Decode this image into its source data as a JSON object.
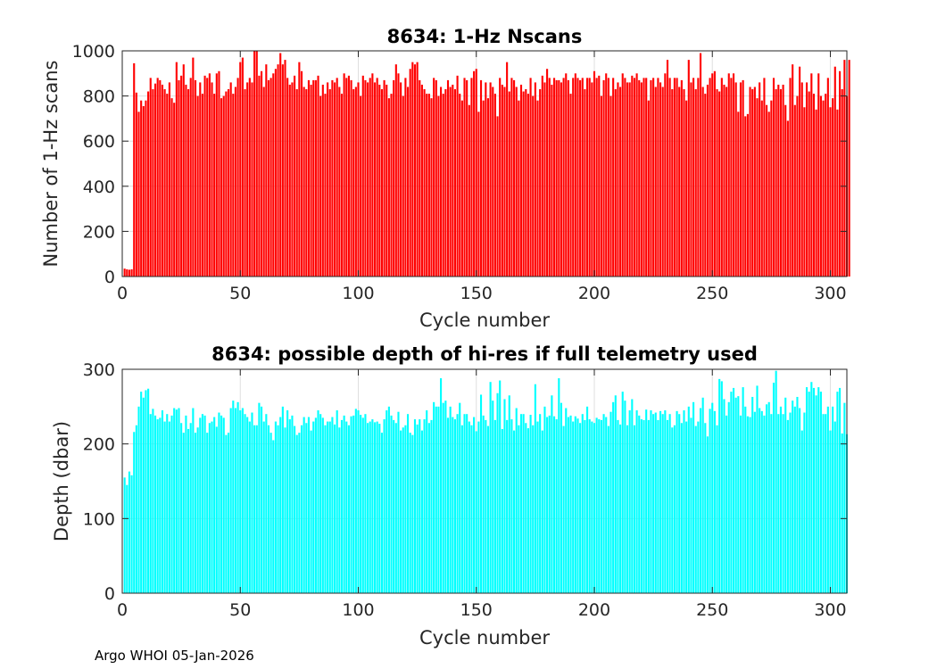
{
  "footer": "Argo WHOI 05-Jan-2026",
  "chart_data": [
    {
      "type": "bar",
      "title": "8634: 1-Hz Nscans",
      "xlabel": "Cycle number",
      "ylabel": "Number of 1-Hz scans",
      "xlim": [
        0,
        307
      ],
      "ylim": [
        0,
        1000
      ],
      "xticks": [
        0,
        50,
        100,
        150,
        200,
        250,
        300
      ],
      "yticks": [
        0,
        200,
        400,
        600,
        800,
        1000
      ],
      "grid": true,
      "color": "#ff0000",
      "x_start": 1,
      "values": [
        35,
        32,
        30,
        32,
        945,
        815,
        730,
        780,
        755,
        780,
        820,
        880,
        830,
        855,
        880,
        870,
        850,
        830,
        810,
        860,
        790,
        770,
        950,
        870,
        890,
        940,
        850,
        830,
        880,
        970,
        870,
        800,
        860,
        810,
        890,
        880,
        900,
        860,
        810,
        900,
        910,
        790,
        800,
        820,
        830,
        860,
        810,
        840,
        880,
        950,
        970,
        830,
        860,
        880,
        860,
        1000,
        1000,
        890,
        910,
        840,
        940,
        870,
        880,
        900,
        920,
        940,
        990,
        940,
        960,
        880,
        850,
        860,
        890,
        830,
        950,
        910,
        840,
        830,
        870,
        850,
        870,
        870,
        890,
        800,
        850,
        810,
        860,
        830,
        870,
        860,
        880,
        840,
        810,
        900,
        880,
        890,
        870,
        830,
        840,
        860,
        800,
        890,
        870,
        860,
        880,
        900,
        860,
        880,
        850,
        830,
        870,
        850,
        790,
        810,
        870,
        940,
        900,
        860,
        800,
        880,
        840,
        920,
        950,
        940,
        950,
        870,
        850,
        830,
        810,
        810,
        790,
        880,
        870,
        800,
        840,
        810,
        830,
        870,
        840,
        850,
        830,
        890,
        810,
        780,
        880,
        870,
        760,
        880,
        910,
        920,
        730,
        870,
        780,
        860,
        790,
        860,
        840,
        810,
        710,
        880,
        850,
        840,
        950,
        820,
        880,
        870,
        840,
        780,
        850,
        820,
        830,
        810,
        880,
        800,
        860,
        780,
        830,
        890,
        860,
        920,
        880,
        850,
        880,
        870,
        870,
        860,
        880,
        900,
        870,
        810,
        880,
        900,
        880,
        870,
        880,
        830,
        880,
        880,
        860,
        910,
        880,
        890,
        800,
        870,
        900,
        880,
        800,
        880,
        830,
        860,
        840,
        900,
        880,
        860,
        860,
        890,
        880,
        900,
        870,
        860,
        880,
        880,
        780,
        870,
        880,
        840,
        880,
        860,
        840,
        900,
        960,
        880,
        830,
        880,
        880,
        840,
        870,
        830,
        780,
        960,
        860,
        880,
        830,
        880,
        990,
        840,
        810,
        850,
        880,
        900,
        910,
        830,
        820,
        880,
        850,
        840,
        900,
        880,
        900,
        860,
        730,
        860,
        870,
        710,
        720,
        840,
        830,
        840,
        790,
        860,
        780,
        880,
        760,
        730,
        780,
        880,
        830,
        850,
        830,
        850,
        760,
        690,
        880,
        940,
        760,
        800,
        930,
        860,
        750,
        860,
        820,
        900,
        810,
        740,
        900,
        800,
        780,
        810,
        880,
        750,
        790,
        930,
        740,
        910,
        830,
        960,
        800,
        960
      ],
      "x_end": 307
    },
    {
      "type": "bar",
      "title": "8634: possible depth of hi-res if full telemetry used",
      "xlabel": "Cycle number",
      "ylabel": "Depth (dbar)",
      "xlim": [
        0,
        307
      ],
      "ylim": [
        0,
        300
      ],
      "xticks": [
        0,
        50,
        100,
        150,
        200,
        250,
        300
      ],
      "yticks": [
        0,
        100,
        200,
        300
      ],
      "grid": true,
      "color": "#00ffff",
      "x_start": 1,
      "values": [
        155,
        145,
        163,
        158,
        216,
        225,
        250,
        270,
        262,
        272,
        274,
        240,
        247,
        238,
        233,
        235,
        245,
        230,
        240,
        230,
        238,
        248,
        246,
        248,
        228,
        215,
        238,
        220,
        228,
        248,
        215,
        222,
        235,
        240,
        238,
        215,
        228,
        230,
        236,
        223,
        242,
        238,
        235,
        212,
        215,
        248,
        258,
        248,
        256,
        245,
        248,
        240,
        236,
        230,
        242,
        225,
        225,
        255,
        250,
        230,
        240,
        225,
        215,
        205,
        230,
        225,
        236,
        250,
        222,
        245,
        233,
        238,
        224,
        212,
        215,
        225,
        236,
        228,
        236,
        218,
        230,
        235,
        245,
        240,
        235,
        225,
        230,
        230,
        236,
        226,
        245,
        222,
        232,
        238,
        230,
        225,
        237,
        238,
        247,
        245,
        239,
        235,
        240,
        228,
        230,
        233,
        229,
        230,
        227,
        215,
        233,
        245,
        250,
        238,
        232,
        228,
        243,
        218,
        222,
        225,
        240,
        215,
        212,
        233,
        226,
        233,
        218,
        233,
        245,
        228,
        232,
        256,
        250,
        250,
        288,
        255,
        258,
        235,
        250,
        236,
        233,
        240,
        255,
        225,
        240,
        240,
        230,
        225,
        236,
        217,
        230,
        266,
        238,
        232,
        224,
        283,
        258,
        232,
        268,
        285,
        220,
        260,
        232,
        265,
        233,
        218,
        248,
        225,
        240,
        240,
        228,
        221,
        239,
        225,
        280,
        230,
        240,
        218,
        250,
        236,
        238,
        265,
        237,
        233,
        288,
        255,
        224,
        248,
        236,
        238,
        230,
        237,
        234,
        228,
        240,
        232,
        250,
        233,
        230,
        228,
        235,
        233,
        232,
        240,
        236,
        224,
        243,
        256,
        265,
        232,
        226,
        270,
        258,
        225,
        245,
        260,
        225,
        245,
        238,
        233,
        232,
        246,
        232,
        245,
        240,
        242,
        232,
        244,
        240,
        245,
        232,
        240,
        222,
        225,
        244,
        240,
        228,
        245,
        230,
        250,
        235,
        256,
        224,
        230,
        248,
        262,
        228,
        210,
        247,
        255,
        244,
        225,
        287,
        284,
        260,
        238,
        256,
        270,
        275,
        262,
        264,
        238,
        276,
        250,
        237,
        236,
        263,
        243,
        278,
        248,
        244,
        238,
        253,
        256,
        240,
        282,
        298,
        240,
        250,
        240,
        262,
        232,
        242,
        258,
        250,
        263,
        248,
        218,
        242,
        276,
        270,
        283,
        275,
        265,
        276,
        270,
        240,
        240,
        250,
        218,
        250,
        230,
        270,
        275,
        214,
        255,
        213
      ],
      "x_end": 307
    }
  ]
}
